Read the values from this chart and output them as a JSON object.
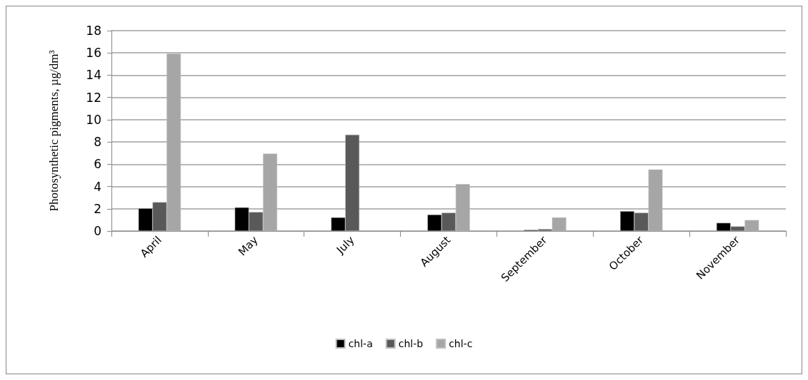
{
  "chart_data": {
    "type": "bar",
    "ylabel": "Photosynthetic pigments, µg/dm³",
    "categories": [
      "April",
      "May",
      "July",
      "August",
      "September",
      "October",
      "November"
    ],
    "series": [
      {
        "name": "chl-a",
        "color": "#000000",
        "values": [
          2.03,
          2.12,
          1.22,
          1.47,
          0.1,
          1.78,
          0.73
        ]
      },
      {
        "name": "chl-b",
        "color": "#595959",
        "values": [
          2.59,
          1.7,
          8.65,
          1.64,
          0.17,
          1.64,
          0.41
        ]
      },
      {
        "name": "chl-c",
        "color": "#a6a6a6",
        "values": [
          15.93,
          6.95,
          null,
          4.21,
          1.22,
          5.52,
          0.98
        ]
      }
    ],
    "ylim": [
      0,
      18
    ],
    "yticks": [
      0,
      2,
      4,
      6,
      8,
      10,
      12,
      14,
      16,
      18
    ],
    "grid": "y",
    "legend": "bottom"
  }
}
